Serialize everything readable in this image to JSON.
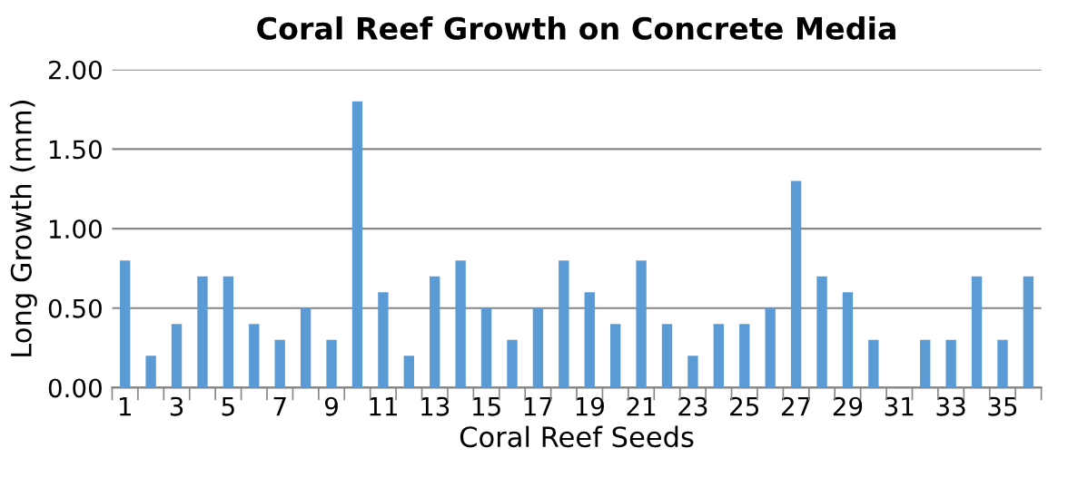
{
  "chart_data": {
    "type": "bar",
    "title": "Coral Reef Growth on Concrete Media",
    "xlabel": "Coral Reef Seeds",
    "ylabel": "Long Growth (mm)",
    "categories": [
      "1",
      null,
      "3",
      null,
      "5",
      null,
      "7",
      null,
      "9",
      null,
      "11",
      null,
      "13",
      null,
      "15",
      null,
      "17",
      null,
      "19",
      null,
      "21",
      null,
      "23",
      null,
      "25",
      null,
      "27",
      null,
      "29",
      null,
      "31",
      null,
      "33",
      null,
      "35",
      null
    ],
    "values": [
      0.8,
      0.2,
      0.4,
      0.7,
      0.7,
      0.4,
      0.3,
      0.5,
      0.3,
      1.8,
      0.6,
      0.2,
      0.7,
      0.8,
      0.5,
      0.3,
      0.5,
      0.8,
      0.6,
      0.4,
      0.8,
      0.4,
      0.2,
      0.4,
      0.4,
      0.5,
      1.3,
      0.7,
      0.6,
      0.3,
      0,
      0.3,
      0.3,
      0.7,
      0.3,
      0.7
    ],
    "color": "#5b9bd5",
    "ylim": [
      0,
      2
    ],
    "yticks": [
      {
        "value": 0,
        "label": "0.00"
      },
      {
        "value": 0.5,
        "label": "0.50"
      },
      {
        "value": 1,
        "label": "1.00"
      },
      {
        "value": 1.5,
        "label": "1.50"
      },
      {
        "value": 2,
        "label": "2.00"
      }
    ],
    "grid": "y",
    "legend": false
  }
}
